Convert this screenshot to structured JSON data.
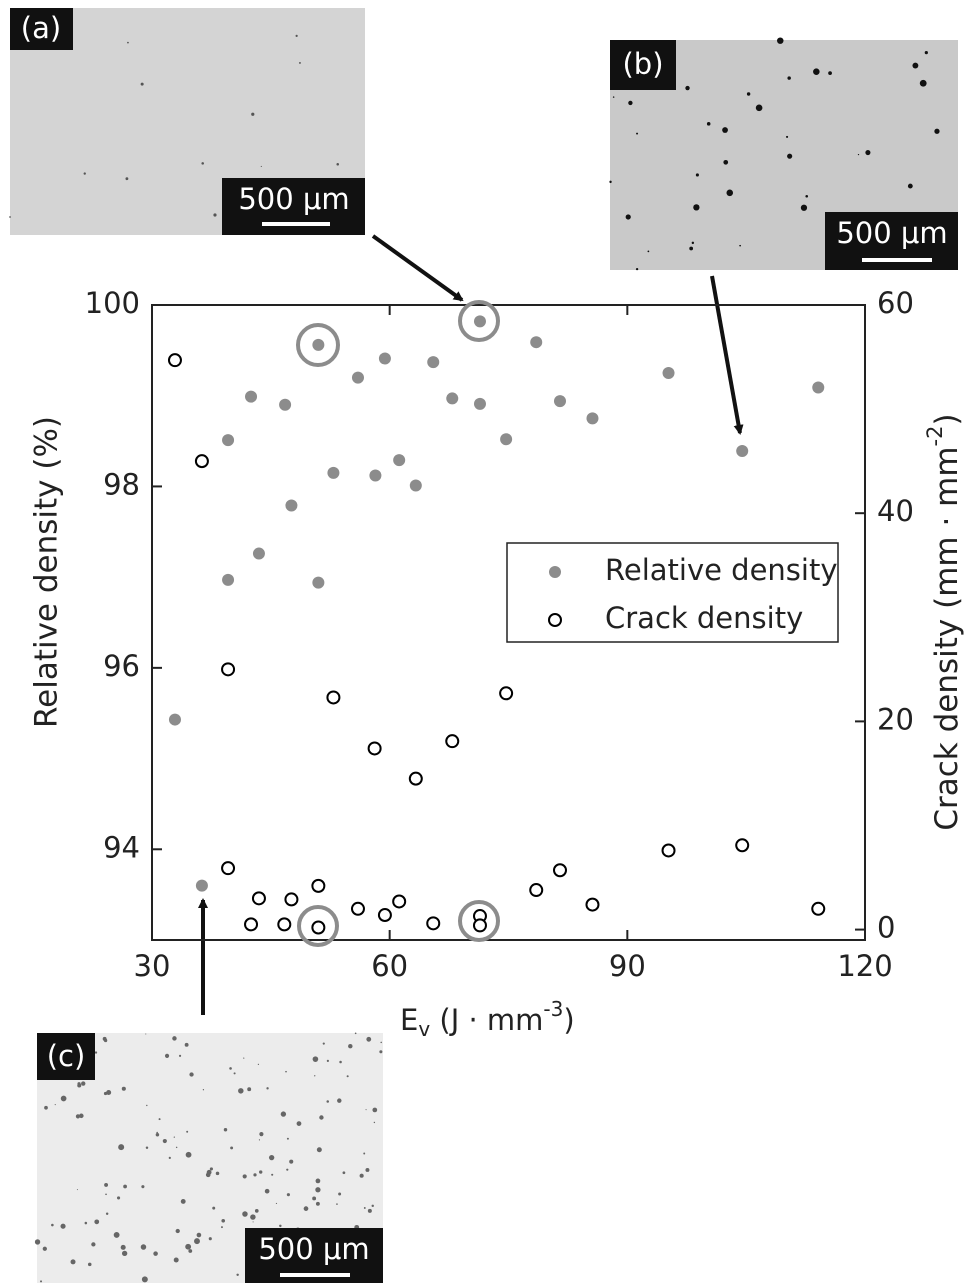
{
  "chart_data": {
    "type": "scatter",
    "xlabel_parts": [
      "E",
      "v",
      " (J · mm",
      "-3",
      ")"
    ],
    "ylabel": "Relative density (%)",
    "y2label_parts": [
      "Crack density (mm · mm",
      "-2",
      ")"
    ],
    "xlim": [
      30,
      120
    ],
    "xticks": [
      30,
      60,
      90,
      120
    ],
    "ylim": [
      93,
      100
    ],
    "yticks": [
      94,
      96,
      98,
      100
    ],
    "y2lim": [
      -1,
      60
    ],
    "y2ticks": [
      0,
      20,
      40,
      60
    ],
    "legend": "center-right",
    "series": [
      {
        "name": "Relative density",
        "color": "#8c8c8c",
        "marker": "filled",
        "x": [
          51.0,
          71.4,
          59.4,
          56.0,
          65.5,
          78.5,
          42.5,
          46.8,
          67.9,
          71.4,
          81.5,
          85.6,
          95.2,
          114.1,
          39.6,
          74.7,
          104.5,
          52.9,
          58.2,
          61.2,
          63.3,
          47.6,
          43.5,
          39.6,
          51.0,
          32.9,
          36.3
        ],
        "values": [
          99.56,
          99.82,
          99.41,
          99.2,
          99.37,
          99.59,
          98.99,
          98.9,
          98.97,
          98.91,
          98.94,
          98.75,
          99.25,
          99.09,
          98.51,
          98.52,
          98.39,
          98.15,
          98.12,
          98.29,
          98.01,
          97.79,
          97.26,
          96.97,
          96.94,
          95.43,
          93.6
        ]
      },
      {
        "name": "Crack density",
        "color": "#000000",
        "marker": "hollow",
        "axis": "y2",
        "x": [
          32.9,
          36.3,
          39.6,
          52.9,
          74.7,
          58.1,
          67.9,
          63.3,
          39.6,
          43.5,
          47.6,
          51.0,
          42.5,
          46.7,
          51.0,
          56.0,
          59.4,
          61.2,
          65.5,
          71.4,
          71.4,
          78.5,
          81.5,
          85.6,
          95.2,
          104.5,
          114.1
        ],
        "values": [
          54.7,
          45.0,
          25.0,
          22.3,
          22.7,
          17.4,
          18.1,
          14.5,
          5.9,
          3.0,
          2.9,
          4.2,
          0.5,
          0.5,
          0.2,
          2.0,
          1.4,
          2.7,
          0.6,
          1.3,
          0.4,
          3.8,
          5.7,
          2.4,
          7.6,
          8.1,
          2.0
        ]
      }
    ],
    "insets": [
      {
        "label": "(a)",
        "scale": "500 μm"
      },
      {
        "label": "(b)",
        "scale": "500 μm"
      },
      {
        "label": "(c)",
        "scale": "500 μm"
      }
    ]
  }
}
